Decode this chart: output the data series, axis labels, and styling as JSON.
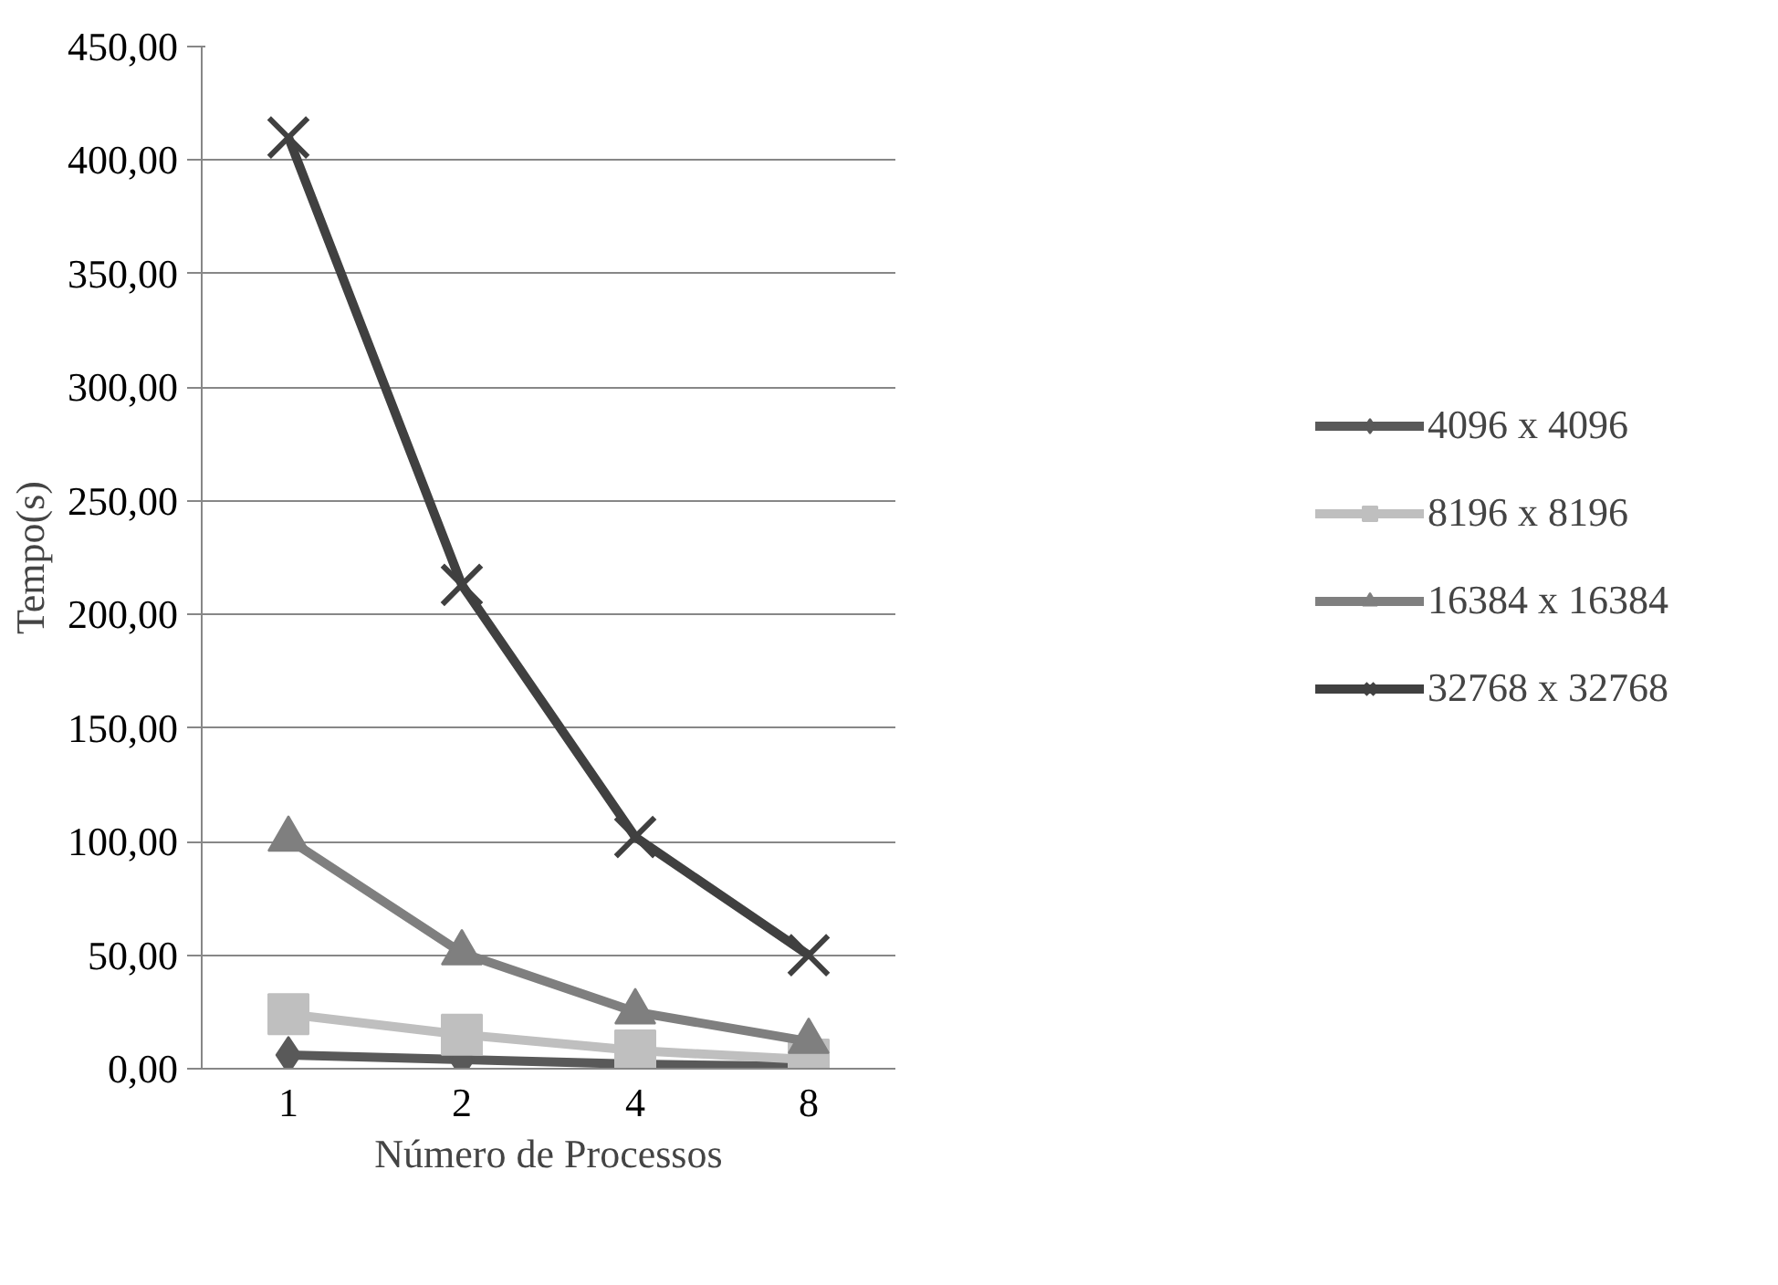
{
  "chart_data": {
    "type": "line",
    "xlabel": "Número de Processos",
    "ylabel": "Tempo(s)",
    "categories": [
      "1",
      "2",
      "4",
      "8"
    ],
    "series": [
      {
        "name": "4096 x 4096",
        "color": "#595959",
        "marker": "diamond",
        "values": [
          6,
          4,
          2,
          1
        ]
      },
      {
        "name": "8196 x 8196",
        "color": "#bfbfbf",
        "marker": "square",
        "values": [
          24,
          15,
          8,
          4
        ]
      },
      {
        "name": "16384 x 16384",
        "color": "#7f7f7f",
        "marker": "triangle",
        "values": [
          101,
          51,
          25,
          12
        ]
      },
      {
        "name": "32768 x 32768",
        "color": "#404040",
        "marker": "cross",
        "values": [
          410,
          213,
          102,
          50
        ]
      }
    ],
    "ylim": [
      0,
      450
    ],
    "yticks": [
      {
        "value": 0,
        "label": "0,00"
      },
      {
        "value": 50,
        "label": "50,00"
      },
      {
        "value": 100,
        "label": "100,00"
      },
      {
        "value": 150,
        "label": "150,00"
      },
      {
        "value": 200,
        "label": "200,00"
      },
      {
        "value": 250,
        "label": "250,00"
      },
      {
        "value": 300,
        "label": "300,00"
      },
      {
        "value": 350,
        "label": "350,00"
      },
      {
        "value": 400,
        "label": "400,00"
      },
      {
        "value": 450,
        "label": "450,00"
      }
    ],
    "grid": "y",
    "legend": "right",
    "line_style": "solid"
  }
}
